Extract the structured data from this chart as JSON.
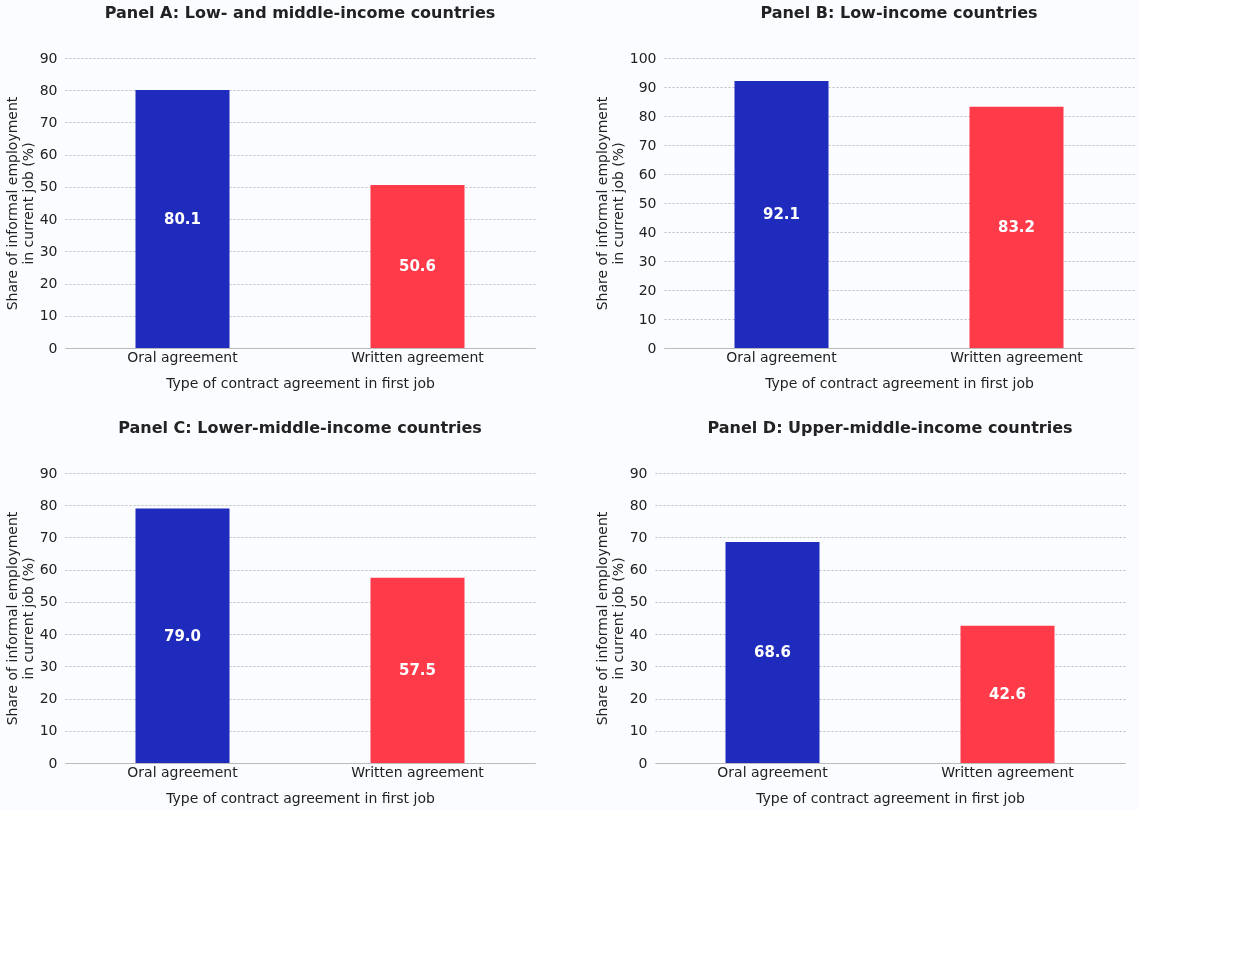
{
  "chart_data": [
    {
      "type": "bar",
      "title": "Panel A: Low- and middle-income countries",
      "xlabel": "Type of contract agreement in first job",
      "ylabel": "Share of informal employment\nin current job (%)",
      "categories": [
        "Oral agreement",
        "Written agreement"
      ],
      "values": [
        80.1,
        50.6
      ],
      "value_labels": [
        "80.1",
        "50.6"
      ],
      "colors": [
        "#1f2bbd",
        "#ff3b4a"
      ],
      "ylim": [
        0,
        90
      ],
      "yticks": [
        0,
        10,
        20,
        30,
        40,
        50,
        60,
        70,
        80,
        90
      ],
      "grid": "y"
    },
    {
      "type": "bar",
      "title": "Panel B: Low-income countries",
      "xlabel": "Type of contract agreement in first job",
      "ylabel": "Share of informal employment\nin current job (%)",
      "categories": [
        "Oral agreement",
        "Written agreement"
      ],
      "values": [
        92.1,
        83.2
      ],
      "value_labels": [
        "92.1",
        "83.2"
      ],
      "colors": [
        "#1f2bbd",
        "#ff3b4a"
      ],
      "ylim": [
        0,
        100
      ],
      "yticks": [
        0,
        10,
        20,
        30,
        40,
        50,
        60,
        70,
        80,
        90,
        100
      ],
      "grid": "y"
    },
    {
      "type": "bar",
      "title": "Panel C: Lower-middle-income countries",
      "xlabel": "Type of contract agreement in first job",
      "ylabel": "Share of informal employment\nin current job (%)",
      "categories": [
        "Oral agreement",
        "Written agreement"
      ],
      "values": [
        79.0,
        57.5
      ],
      "value_labels": [
        "79.0",
        "57.5"
      ],
      "colors": [
        "#1f2bbd",
        "#ff3b4a"
      ],
      "ylim": [
        0,
        90
      ],
      "yticks": [
        0,
        10,
        20,
        30,
        40,
        50,
        60,
        70,
        80,
        90
      ],
      "grid": "y"
    },
    {
      "type": "bar",
      "title": "Panel D: Upper-middle-income countries",
      "xlabel": "Type of contract agreement in first job",
      "ylabel": "Share of informal employment\nin current job (%)",
      "categories": [
        "Oral agreement",
        "Written agreement"
      ],
      "values": [
        68.6,
        42.6
      ],
      "value_labels": [
        "68.6",
        "42.6"
      ],
      "colors": [
        "#1f2bbd",
        "#ff3b4a"
      ],
      "ylim": [
        0,
        90
      ],
      "yticks": [
        0,
        10,
        20,
        30,
        40,
        50,
        60,
        70,
        80,
        90
      ],
      "grid": "y"
    }
  ]
}
